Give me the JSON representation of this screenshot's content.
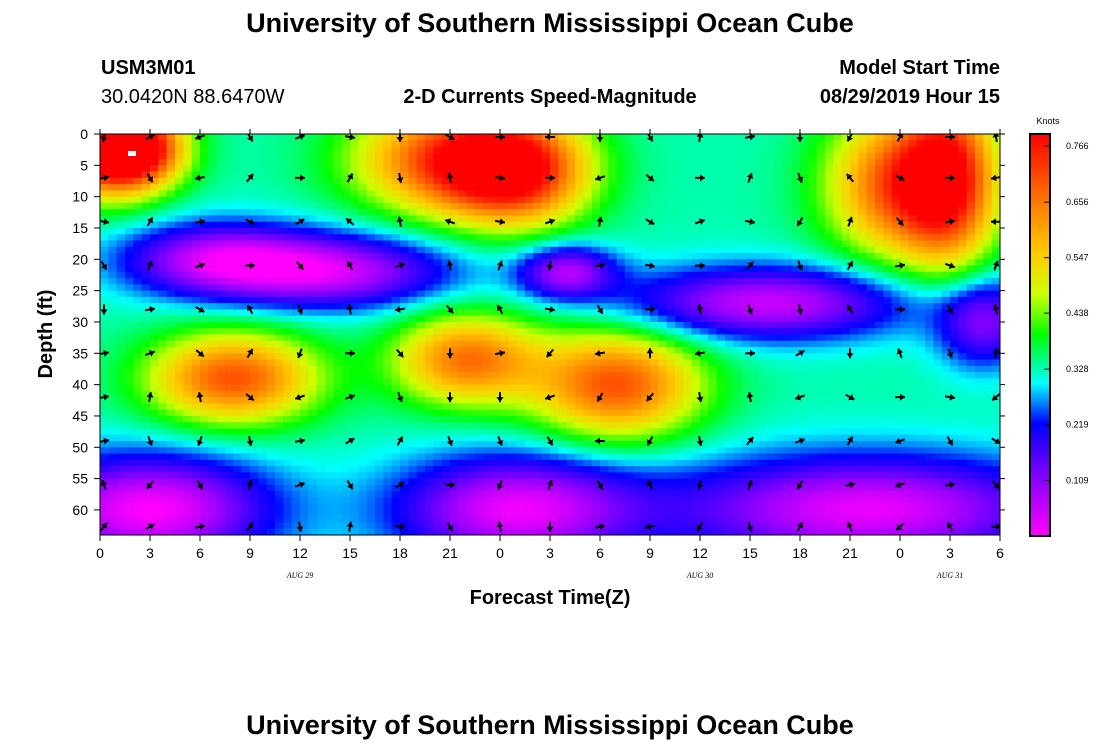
{
  "header": {
    "title_top": "University of Southern Mississippi Ocean Cube",
    "station_id": "USM3M01",
    "location": "30.0420N 88.6470W",
    "plot_title": "2-D Currents Speed-Magnitude",
    "model_start_label": "Model Start Time",
    "model_start_value": "08/29/2019 Hour 15"
  },
  "footer": {
    "title_bottom": "University of Southern Mississippi Ocean Cube"
  },
  "chart_data": {
    "type": "heatmap",
    "title": "2-D Currents Speed-Magnitude",
    "xlabel": "Forecast Time(Z)",
    "ylabel": "Depth (ft)",
    "x_ticks": [
      "0",
      "3",
      "6",
      "9",
      "12",
      "15",
      "18",
      "21",
      "0",
      "3",
      "6",
      "9",
      "12",
      "15",
      "18",
      "21",
      "0",
      "3",
      "6"
    ],
    "x_range": [
      0,
      54
    ],
    "date_labels": [
      {
        "text": "AUG 29",
        "at_hour": 12
      },
      {
        "text": "AUG 30",
        "at_hour": 36
      },
      {
        "text": "AUG 31",
        "at_hour": 51
      }
    ],
    "y_ticks": [
      "0",
      "5",
      "10",
      "15",
      "20",
      "25",
      "30",
      "35",
      "40",
      "45",
      "50",
      "55",
      "60"
    ],
    "y_range": [
      0,
      64
    ],
    "colorbar": {
      "unit": "Knots",
      "ticks": [
        "0.766",
        "0.656",
        "0.547",
        "0.438",
        "0.328",
        "0.219",
        "0.109"
      ],
      "min": 0.0,
      "max": 0.79
    },
    "speed_features": [
      {
        "hour": 0.5,
        "depth": 3,
        "speed": 0.77,
        "spread_h": 2.5,
        "spread_d": 5
      },
      {
        "hour": 2,
        "depth": 2,
        "speed": 0.7,
        "spread_h": 2,
        "spread_d": 4
      },
      {
        "hour": 21,
        "depth": 4,
        "speed": 0.7,
        "spread_h": 4,
        "spread_d": 6
      },
      {
        "hour": 25,
        "depth": 6,
        "speed": 0.72,
        "spread_h": 3,
        "spread_d": 6
      },
      {
        "hour": 48,
        "depth": 8,
        "speed": 0.7,
        "spread_h": 3,
        "spread_d": 8
      },
      {
        "hour": 51,
        "depth": 7,
        "speed": 0.68,
        "spread_h": 2,
        "spread_d": 10
      },
      {
        "hour": 8,
        "depth": 39,
        "speed": 0.7,
        "spread_h": 3.5,
        "spread_d": 5
      },
      {
        "hour": 22,
        "depth": 36,
        "speed": 0.66,
        "spread_h": 3,
        "spread_d": 5
      },
      {
        "hour": 31,
        "depth": 40,
        "speed": 0.7,
        "spread_h": 3.5,
        "spread_d": 6
      },
      {
        "hour": 7,
        "depth": 20,
        "speed": 0.08,
        "spread_h": 4,
        "spread_d": 4
      },
      {
        "hour": 14,
        "depth": 22,
        "speed": 0.06,
        "spread_h": 5,
        "spread_d": 4
      },
      {
        "hour": 28,
        "depth": 22,
        "speed": 0.08,
        "spread_h": 2,
        "spread_d": 3
      },
      {
        "hour": 40,
        "depth": 27,
        "speed": 0.05,
        "spread_h": 6,
        "spread_d": 4
      },
      {
        "hour": 53,
        "depth": 30,
        "speed": 0.12,
        "spread_h": 2,
        "spread_d": 5
      },
      {
        "hour": 3,
        "depth": 60,
        "speed": 0.0,
        "spread_h": 5,
        "spread_d": 6
      },
      {
        "hour": 25,
        "depth": 60,
        "speed": 0.02,
        "spread_h": 5,
        "spread_d": 6
      },
      {
        "hour": 46,
        "depth": 60,
        "speed": 0.02,
        "spread_h": 8,
        "spread_d": 6
      }
    ],
    "vector_grid": {
      "hours_every": 3,
      "depths": [
        0,
        7,
        14,
        21,
        28,
        35,
        42,
        49,
        56,
        63
      ],
      "angles_deg": [
        [
          260,
          30,
          200,
          300,
          20,
          350,
          270,
          330,
          0,
          180,
          270,
          300,
          80,
          10,
          270,
          240,
          60,
          0,
          100
        ],
        [
          10,
          300,
          190,
          50,
          0,
          60,
          280,
          100,
          350,
          0,
          200,
          320,
          0,
          70,
          290,
          130,
          330,
          0,
          190
        ],
        [
          350,
          60,
          10,
          330,
          30,
          140,
          100,
          160,
          350,
          20,
          80,
          330,
          20,
          350,
          240,
          70,
          310,
          10,
          180
        ],
        [
          300,
          70,
          20,
          0,
          310,
          120,
          20,
          100,
          70,
          260,
          10,
          350,
          0,
          50,
          290,
          60,
          10,
          340,
          70
        ],
        [
          270,
          10,
          330,
          120,
          290,
          100,
          190,
          310,
          120,
          350,
          300,
          0,
          100,
          290,
          280,
          120,
          0,
          300,
          100
        ],
        [
          10,
          20,
          320,
          60,
          250,
          0,
          310,
          270,
          10,
          230,
          190,
          90,
          190,
          0,
          30,
          270,
          110,
          290,
          80
        ],
        [
          10,
          80,
          100,
          320,
          200,
          20,
          290,
          270,
          270,
          200,
          240,
          230,
          280,
          100,
          200,
          330,
          0,
          350,
          220
        ],
        [
          10,
          290,
          250,
          280,
          10,
          30,
          60,
          290,
          290,
          300,
          180,
          240,
          280,
          50,
          20,
          60,
          200,
          300,
          330
        ],
        [
          110,
          230,
          300,
          80,
          20,
          300,
          30,
          0,
          250,
          70,
          300,
          110,
          260,
          70,
          240,
          10,
          200,
          10,
          310
        ],
        [
          50,
          30,
          10,
          50,
          280,
          80,
          350,
          300,
          100,
          270,
          10,
          190,
          240,
          290,
          60,
          110,
          220,
          120,
          0
        ]
      ]
    }
  }
}
